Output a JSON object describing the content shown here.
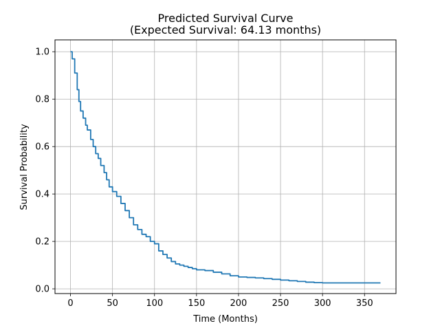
{
  "chart_data": {
    "type": "line",
    "title_line1": "Predicted Survival Curve",
    "title_line2": "(Expected Survival: 64.13 months)",
    "xlabel": "Time (Months)",
    "ylabel": "Survival Probability",
    "xlim": [
      -18.45,
      387.45
    ],
    "ylim": [
      -0.02,
      1.05
    ],
    "xticks": [
      0,
      50,
      100,
      150,
      200,
      250,
      300,
      350
    ],
    "yticks": [
      0.0,
      0.2,
      0.4,
      0.6,
      0.8,
      1.0
    ],
    "xtick_labels": [
      "0",
      "50",
      "100",
      "150",
      "200",
      "250",
      "300",
      "350"
    ],
    "ytick_labels": [
      "0.0",
      "0.2",
      "0.4",
      "0.6",
      "0.8",
      "1.0"
    ],
    "grid": true,
    "legend": "none",
    "series": [
      {
        "color": "#1f77b4",
        "x": [
          0,
          2,
          5,
          8,
          10,
          12,
          15,
          18,
          20,
          24,
          27,
          30,
          33,
          36,
          40,
          43,
          46,
          50,
          55,
          60,
          65,
          70,
          75,
          80,
          85,
          90,
          95,
          100,
          105,
          110,
          115,
          120,
          125,
          130,
          135,
          140,
          145,
          150,
          160,
          170,
          180,
          190,
          200,
          210,
          220,
          230,
          240,
          250,
          260,
          270,
          280,
          290,
          300,
          320,
          340,
          369
        ],
        "y": [
          1.0,
          0.97,
          0.91,
          0.84,
          0.79,
          0.75,
          0.72,
          0.69,
          0.67,
          0.63,
          0.6,
          0.57,
          0.55,
          0.52,
          0.49,
          0.46,
          0.43,
          0.41,
          0.39,
          0.36,
          0.33,
          0.3,
          0.27,
          0.25,
          0.23,
          0.22,
          0.2,
          0.19,
          0.16,
          0.145,
          0.13,
          0.115,
          0.105,
          0.1,
          0.095,
          0.09,
          0.085,
          0.08,
          0.077,
          0.07,
          0.063,
          0.055,
          0.05,
          0.048,
          0.046,
          0.043,
          0.04,
          0.037,
          0.034,
          0.031,
          0.028,
          0.026,
          0.025,
          0.025,
          0.025,
          0.025
        ]
      }
    ]
  }
}
